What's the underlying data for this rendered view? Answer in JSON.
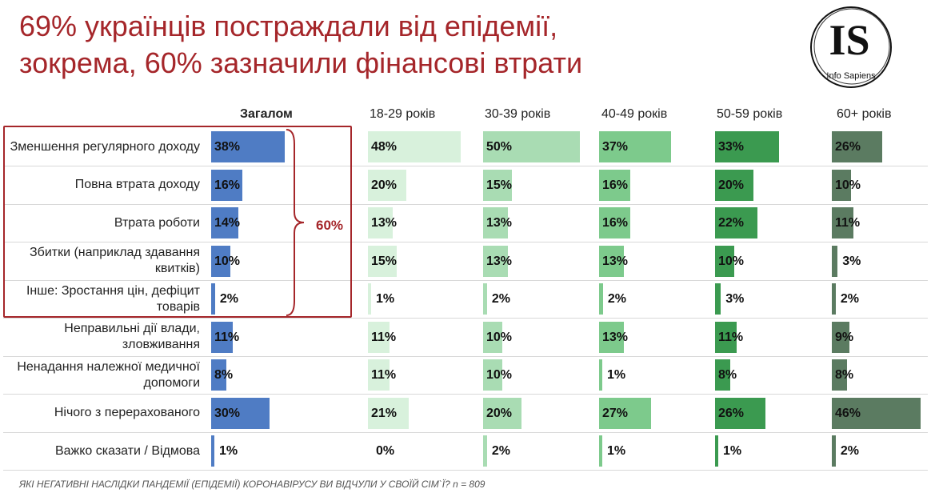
{
  "title": "69% українців постраждали від епідемії, зокрема, 60% зазначили фінансові втрати",
  "logo": {
    "text_big": "IS",
    "text_small": "Info Sapiens"
  },
  "bracket_label": "60%",
  "question": "ЯКІ НЕГАТИВНІ НАСЛІДКИ ПАНДЕМІЇ (ЕПІДЕМІЇ) КОРОНАВІРУСУ ВИ ВІДЧУЛИ У СВОЇЙ СІМ`Ї? n = 809",
  "chart_data": {
    "type": "bar",
    "categories": [
      "Зменшення регулярного доходу",
      "Повна втрата доходу",
      "Втрата роботи",
      "Збитки (наприклад здавання квитків)",
      "Інше: Зростання цін, дефіцит товарів",
      "Неправильні дії влади, зловживання",
      "Ненадання належної медичної допомоги",
      "Нічого з перерахованого",
      "Важко сказати / Відмова"
    ],
    "series": [
      {
        "name": "Загалом",
        "color": "#4f7cc4",
        "values": [
          38,
          16,
          14,
          10,
          2,
          11,
          8,
          30,
          1
        ]
      },
      {
        "name": "18-29 років",
        "color": "#d8f1dc",
        "values": [
          48,
          20,
          13,
          15,
          1,
          11,
          11,
          21,
          0
        ]
      },
      {
        "name": "30-39 років",
        "color": "#a9dcb3",
        "values": [
          50,
          15,
          13,
          13,
          2,
          10,
          10,
          20,
          2
        ]
      },
      {
        "name": "40-49 років",
        "color": "#7dca8c",
        "values": [
          37,
          16,
          16,
          13,
          2,
          13,
          1,
          27,
          1
        ]
      },
      {
        "name": "50-59 років",
        "color": "#3b9a50",
        "values": [
          33,
          20,
          22,
          10,
          3,
          11,
          8,
          26,
          1
        ]
      },
      {
        "name": "60+ років",
        "color": "#5b7b61",
        "values": [
          26,
          10,
          11,
          3,
          2,
          9,
          8,
          46,
          2
        ]
      }
    ]
  }
}
